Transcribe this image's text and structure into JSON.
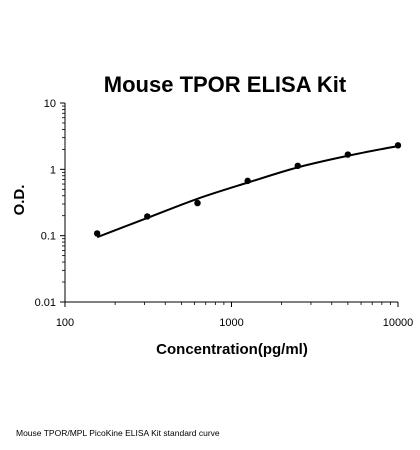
{
  "chart_data": {
    "type": "scatter",
    "title": "Mouse TPOR ELISA Kit",
    "xlabel": "Concentration(pg/ml)",
    "ylabel": "O.D.",
    "xscale": "log",
    "yscale": "log",
    "xlim": [
      100,
      10000
    ],
    "ylim": [
      0.01,
      10
    ],
    "xticks": [
      100,
      1000,
      10000
    ],
    "xtick_labels": [
      "100",
      "1000",
      "10000"
    ],
    "yticks": [
      0.01,
      0.1,
      1,
      10
    ],
    "ytick_labels": [
      "0.01",
      "0.1",
      "1",
      "10"
    ],
    "grid": false,
    "series": [
      {
        "points": {
          "x": [
            156,
            312,
            625,
            1250,
            2500,
            5000,
            10000
          ],
          "y": [
            0.108,
            0.195,
            0.31,
            0.67,
            1.13,
            1.67,
            2.3
          ]
        },
        "fit_curve": {
          "x": [
            156,
            312,
            625,
            1250,
            2500,
            5000,
            10000
          ],
          "y": [
            0.095,
            0.185,
            0.36,
            0.63,
            1.07,
            1.6,
            2.25
          ]
        }
      }
    ]
  },
  "caption": "Mouse TPOR/MPL PicoKine ELISA Kit standard curve"
}
